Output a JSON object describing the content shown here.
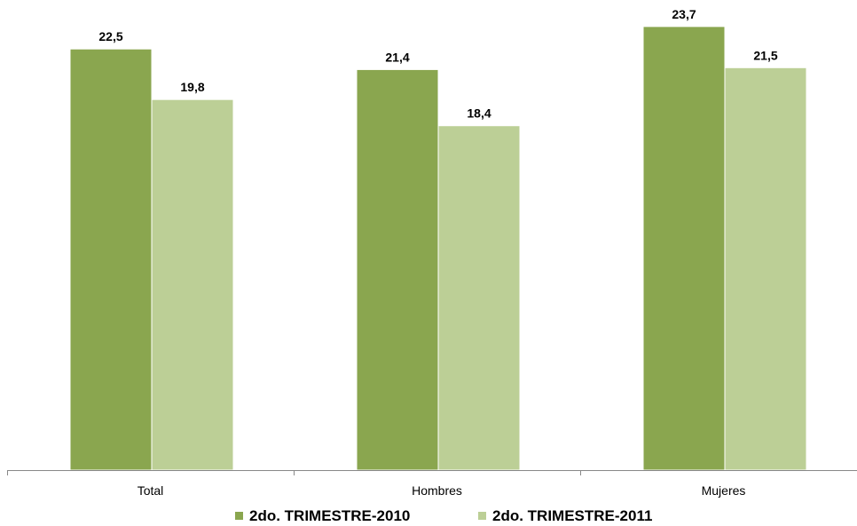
{
  "chart_data": {
    "type": "bar",
    "categories": [
      "Total",
      "Hombres",
      "Mujeres"
    ],
    "series": [
      {
        "name": "2do. TRIMESTRE-2010",
        "values": [
          22.5,
          21.4,
          23.7
        ],
        "color": "#8aa64f"
      },
      {
        "name": "2do. TRIMESTRE-2011",
        "values": [
          19.8,
          18.4,
          21.5
        ],
        "color": "#bccf96"
      }
    ],
    "value_labels": [
      [
        "22,5",
        "21,4",
        "23,7"
      ],
      [
        "19,8",
        "18,4",
        "21,5"
      ]
    ],
    "ylim": [
      0,
      24.5
    ],
    "grid": false,
    "legend_position": "bottom",
    "title": "",
    "xlabel": "",
    "ylabel": ""
  }
}
